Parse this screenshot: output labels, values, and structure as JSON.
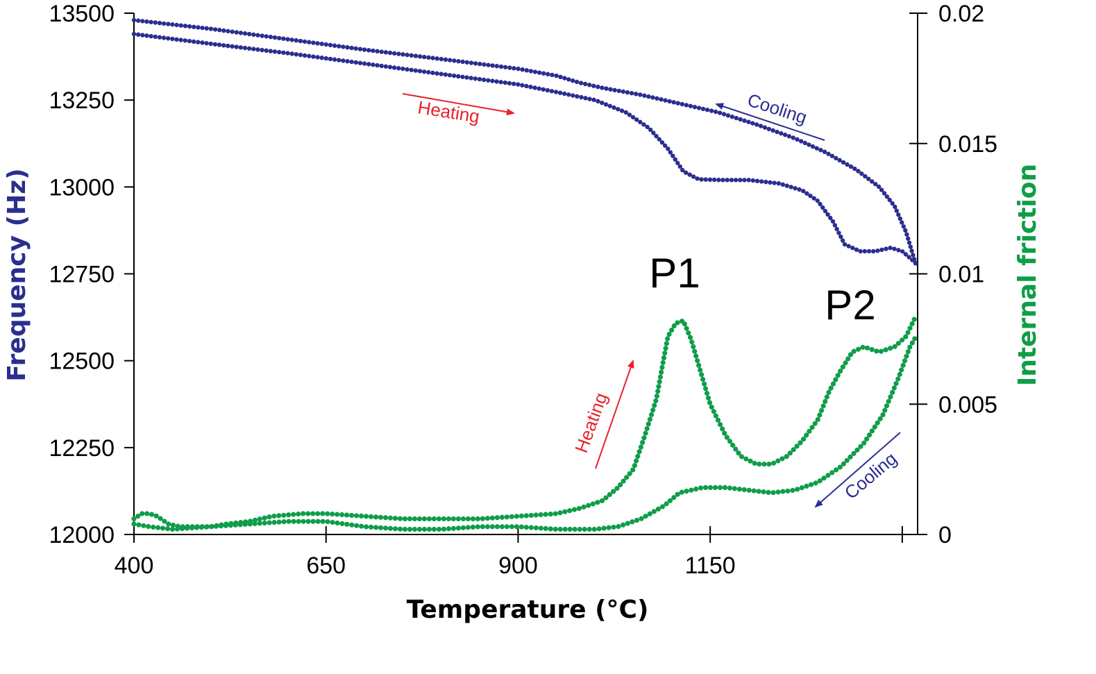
{
  "chart_data": {
    "type": "scatter",
    "xlabel": "Temperature (°C)",
    "ylabel_left": "Frequency (Hz)",
    "ylabel_right": "Internal friction",
    "xlim": [
      400,
      1420
    ],
    "ylim_left": [
      12000,
      13500
    ],
    "ylim_right": [
      0,
      0.02
    ],
    "x_ticks": [
      400,
      650,
      900,
      1150
    ],
    "y_ticks_left": [
      12000,
      12250,
      12500,
      12750,
      13000,
      13250,
      13500
    ],
    "y_ticks_right": [
      0,
      0.005,
      0.01,
      0.015,
      0.02
    ],
    "colors": {
      "frequency": "#2b2e8f",
      "friction": "#0f9d48",
      "heating": "#e8232a",
      "cooling": "#2b2e8f"
    },
    "peak_labels": [
      "P1",
      "P2"
    ],
    "annotations": {
      "heating": "Heating",
      "cooling": "Cooling"
    },
    "series": [
      {
        "axis": "left",
        "points": [
          [
            400,
            13480
          ],
          [
            500,
            13455
          ],
          [
            600,
            13425
          ],
          [
            700,
            13395
          ],
          [
            800,
            13368
          ],
          [
            900,
            13340
          ],
          [
            950,
            13320
          ],
          [
            980,
            13300
          ],
          [
            1010,
            13285
          ],
          [
            1060,
            13265
          ],
          [
            1110,
            13240
          ],
          [
            1160,
            13215
          ],
          [
            1210,
            13180
          ],
          [
            1260,
            13140
          ],
          [
            1300,
            13100
          ],
          [
            1340,
            13050
          ],
          [
            1370,
            13000
          ],
          [
            1390,
            12945
          ],
          [
            1405,
            12870
          ],
          [
            1418,
            12775
          ]
        ]
      },
      {
        "axis": "left",
        "points": [
          [
            400,
            13440
          ],
          [
            500,
            13412
          ],
          [
            600,
            13385
          ],
          [
            700,
            13355
          ],
          [
            800,
            13325
          ],
          [
            900,
            13295
          ],
          [
            950,
            13273
          ],
          [
            1000,
            13250
          ],
          [
            1040,
            13215
          ],
          [
            1070,
            13170
          ],
          [
            1095,
            13110
          ],
          [
            1115,
            13045
          ],
          [
            1135,
            13022
          ],
          [
            1165,
            13020
          ],
          [
            1200,
            13020
          ],
          [
            1240,
            13010
          ],
          [
            1270,
            12990
          ],
          [
            1290,
            12960
          ],
          [
            1310,
            12900
          ],
          [
            1325,
            12835
          ],
          [
            1345,
            12815
          ],
          [
            1365,
            12815
          ],
          [
            1385,
            12825
          ],
          [
            1400,
            12815
          ],
          [
            1418,
            12780
          ]
        ]
      },
      {
        "axis": "right",
        "points": [
          [
            400,
            0.0006
          ],
          [
            410,
            0.0008
          ],
          [
            420,
            0.0008
          ],
          [
            430,
            0.0007
          ],
          [
            445,
            0.0004
          ],
          [
            460,
            0.0003
          ],
          [
            480,
            0.0003
          ],
          [
            500,
            0.0003
          ],
          [
            520,
            0.0004
          ],
          [
            550,
            0.0005
          ],
          [
            580,
            0.0007
          ],
          [
            620,
            0.0008
          ],
          [
            650,
            0.0008
          ],
          [
            700,
            0.0007
          ],
          [
            750,
            0.0006
          ],
          [
            800,
            0.0006
          ],
          [
            850,
            0.0006
          ],
          [
            900,
            0.0007
          ],
          [
            950,
            0.0008
          ],
          [
            980,
            0.001
          ],
          [
            1010,
            0.0013
          ],
          [
            1030,
            0.0018
          ],
          [
            1050,
            0.0025
          ],
          [
            1065,
            0.0038
          ],
          [
            1080,
            0.0052
          ],
          [
            1088,
            0.0065
          ],
          [
            1095,
            0.0076
          ],
          [
            1105,
            0.0081
          ],
          [
            1115,
            0.0082
          ],
          [
            1125,
            0.0075
          ],
          [
            1135,
            0.0065
          ],
          [
            1150,
            0.005
          ],
          [
            1170,
            0.0038
          ],
          [
            1190,
            0.003
          ],
          [
            1210,
            0.0027
          ],
          [
            1230,
            0.0027
          ],
          [
            1250,
            0.003
          ],
          [
            1270,
            0.0036
          ],
          [
            1290,
            0.0044
          ],
          [
            1305,
            0.0055
          ],
          [
            1320,
            0.0063
          ],
          [
            1335,
            0.007
          ],
          [
            1350,
            0.0072
          ],
          [
            1370,
            0.007
          ],
          [
            1390,
            0.0072
          ],
          [
            1405,
            0.0076
          ],
          [
            1418,
            0.0084
          ]
        ]
      },
      {
        "axis": "right",
        "points": [
          [
            400,
            0.0004
          ],
          [
            420,
            0.0003
          ],
          [
            450,
            0.0002
          ],
          [
            500,
            0.0003
          ],
          [
            550,
            0.0004
          ],
          [
            600,
            0.0005
          ],
          [
            650,
            0.0005
          ],
          [
            700,
            0.0003
          ],
          [
            750,
            0.0002
          ],
          [
            800,
            0.0002
          ],
          [
            850,
            0.0003
          ],
          [
            900,
            0.0003
          ],
          [
            950,
            0.0002
          ],
          [
            1000,
            0.0002
          ],
          [
            1030,
            0.0003
          ],
          [
            1060,
            0.0006
          ],
          [
            1090,
            0.0011
          ],
          [
            1110,
            0.0016
          ],
          [
            1140,
            0.0018
          ],
          [
            1170,
            0.0018
          ],
          [
            1200,
            0.0017
          ],
          [
            1230,
            0.0016
          ],
          [
            1260,
            0.0017
          ],
          [
            1290,
            0.002
          ],
          [
            1320,
            0.0026
          ],
          [
            1350,
            0.0035
          ],
          [
            1375,
            0.0046
          ],
          [
            1395,
            0.006
          ],
          [
            1410,
            0.0072
          ],
          [
            1418,
            0.0076
          ]
        ]
      }
    ]
  }
}
